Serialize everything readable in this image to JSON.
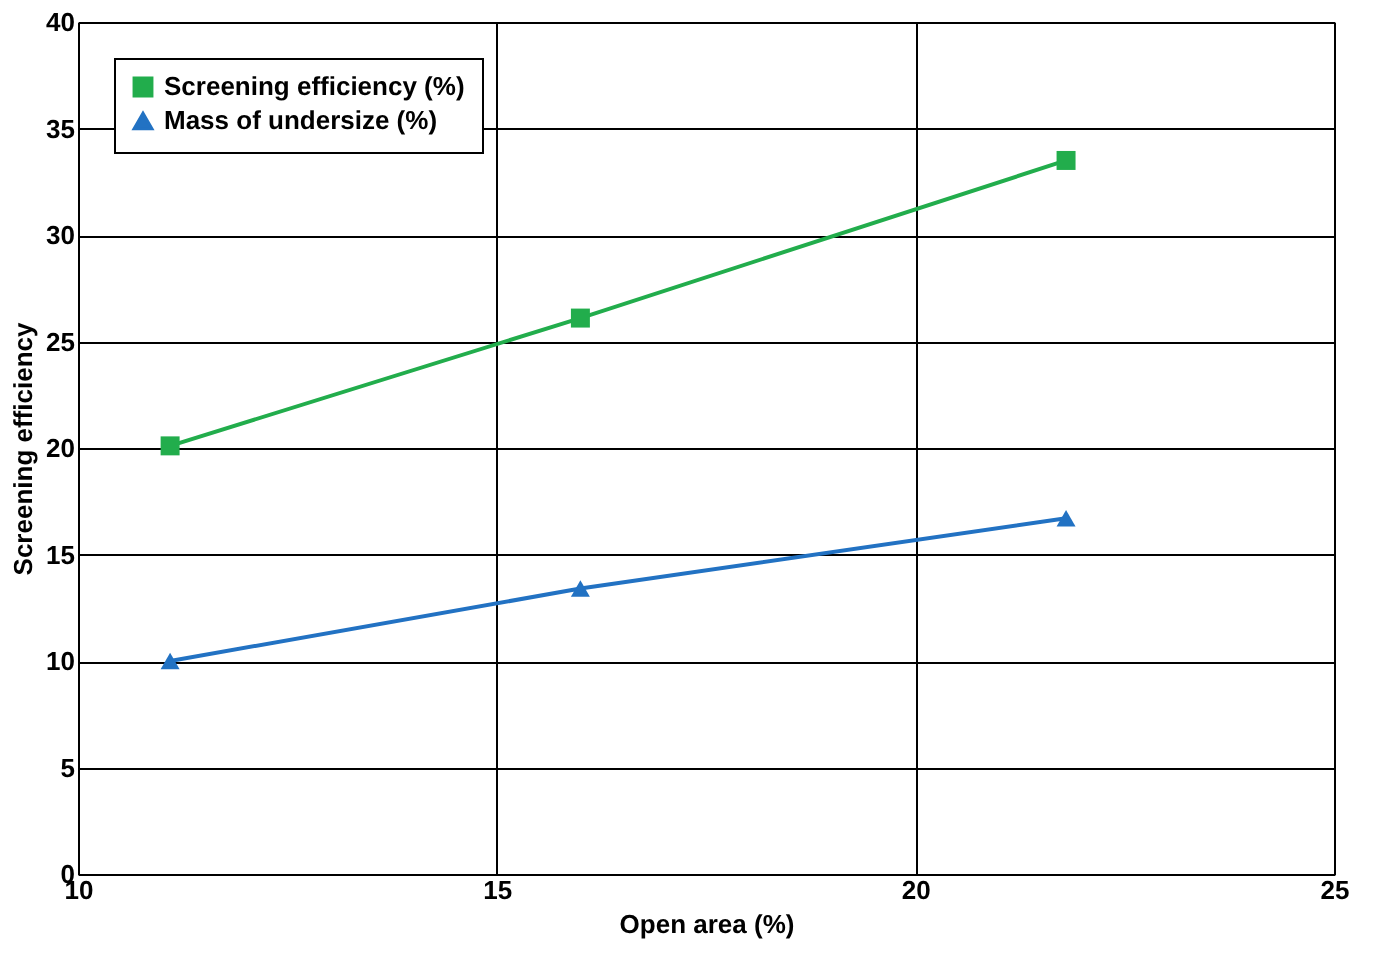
{
  "chart_data": {
    "type": "line",
    "xlabel": "Open area (%)",
    "ylabel": "Screening efficiency",
    "xlim": [
      10,
      25
    ],
    "xticks": [
      10,
      15,
      20,
      25
    ],
    "ylim": [
      0,
      40
    ],
    "yticks": [
      0,
      5,
      10,
      15,
      20,
      25,
      30,
      35,
      40
    ],
    "grid": true,
    "legend": "top left",
    "line_style": "solid",
    "series": [
      {
        "name": "Screening efficiency (%)",
        "color": "#22ad4c",
        "marker": "square",
        "x": [
          11.1,
          16.0,
          21.8
        ],
        "values": [
          20.1,
          26.1,
          33.5
        ]
      },
      {
        "name": "Mass of undersize (%)",
        "color": "#2272c3",
        "marker": "triangle",
        "x": [
          11.1,
          16.0,
          21.8
        ],
        "values": [
          10.0,
          13.4,
          16.7
        ]
      }
    ]
  }
}
